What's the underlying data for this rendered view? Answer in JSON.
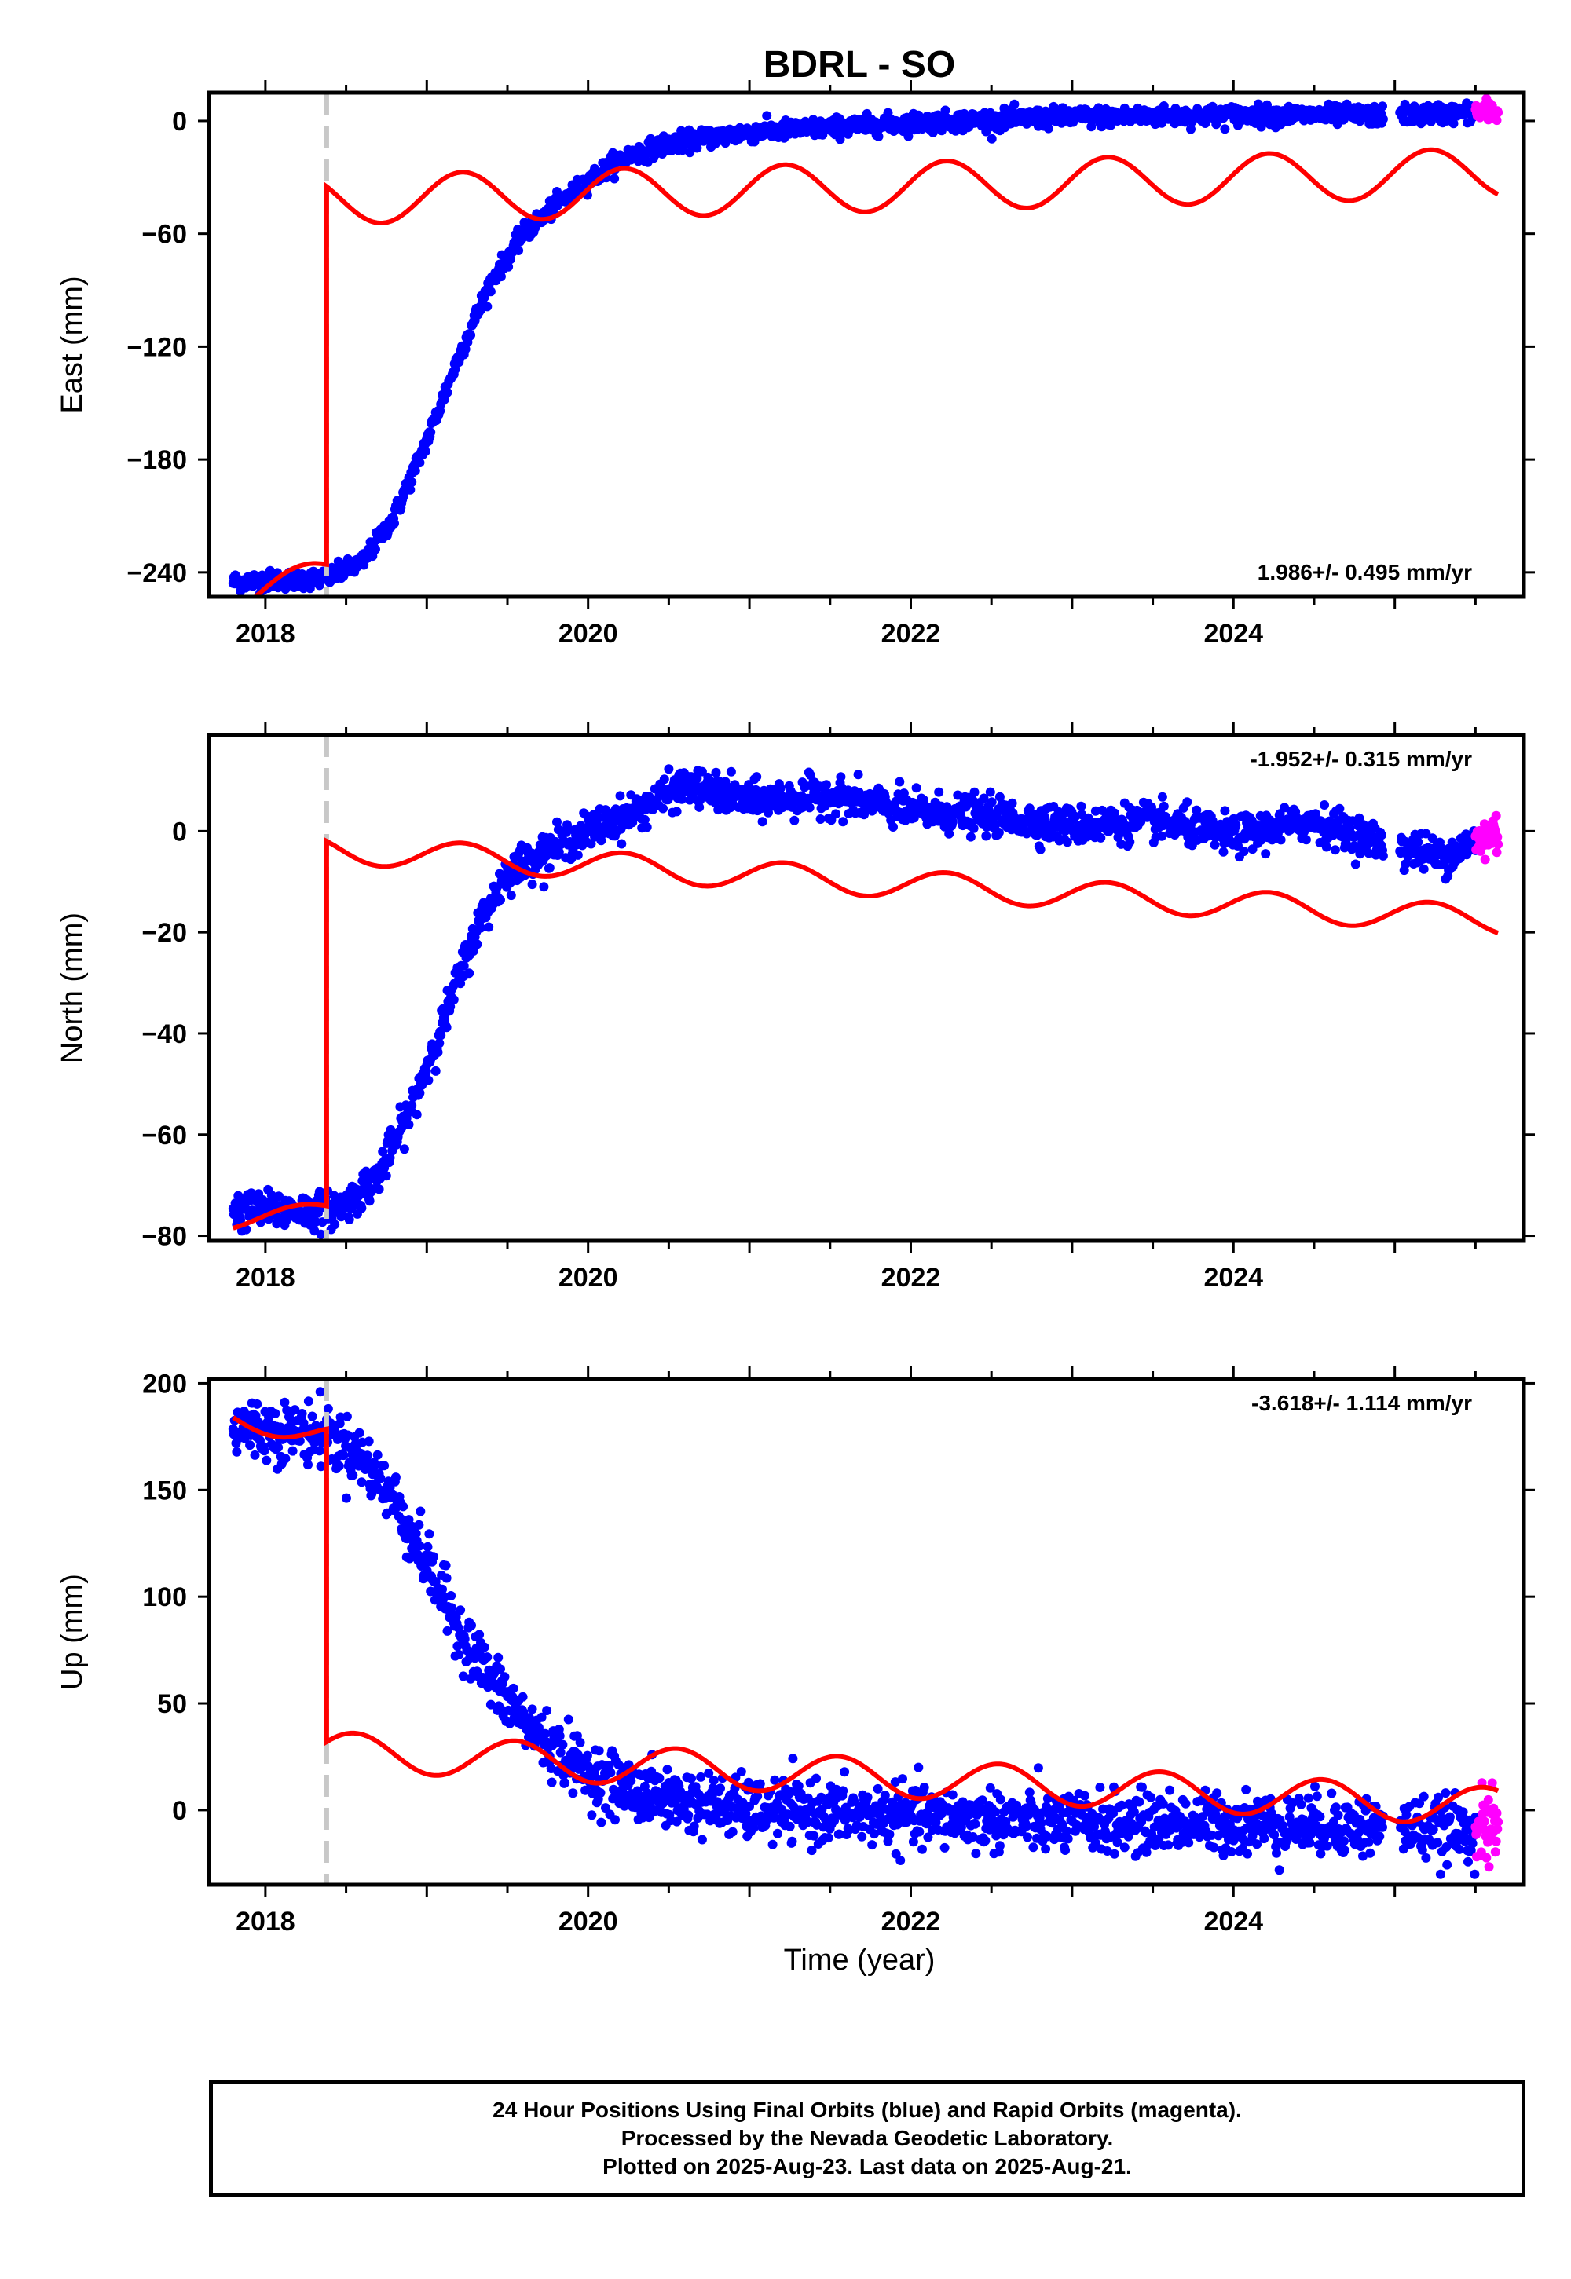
{
  "title": "BDRL - SO",
  "xlabel": "Time (year)",
  "footer": {
    "line1": "24 Hour Positions Using Final Orbits (blue) and Rapid Orbits (magenta).",
    "line2": "Processed by the Nevada Geodetic Laboratory.",
    "line3": "Plotted on 2025-Aug-23. Last data on 2025-Aug-21."
  },
  "colors": {
    "final_orbits": "#0000ff",
    "rapid_orbits": "#ff00ff",
    "model": "#ff0000",
    "antenna_change": "#c8c8c8"
  },
  "chart_data": [
    {
      "type": "scatter",
      "component": "east",
      "ylabel": "East (mm)",
      "rate": "1.986+/- 0.495 mm/yr",
      "rate_position": "bottom-right",
      "xlim": [
        2017.65,
        2025.8
      ],
      "ylim": [
        -253,
        15
      ],
      "yticks": [
        0,
        -60,
        -120,
        -180,
        -240
      ],
      "xticks": [
        2018,
        2020,
        2022,
        2024
      ],
      "step_epoch": 2018.38,
      "obs_start": 2017.8,
      "final_end": 2025.5,
      "gap": [
        2024.93,
        2025.03
      ],
      "rapid_range": [
        2025.5,
        2025.64
      ],
      "scatter_noise": 2.5,
      "blue_profile": [
        [
          2017.8,
          -245
        ],
        [
          2018.38,
          -243
        ],
        [
          2018.6,
          -235
        ],
        [
          2018.8,
          -210
        ],
        [
          2019.0,
          -170
        ],
        [
          2019.2,
          -125
        ],
        [
          2019.4,
          -85
        ],
        [
          2019.6,
          -60
        ],
        [
          2019.8,
          -45
        ],
        [
          2020.0,
          -32
        ],
        [
          2020.2,
          -20
        ],
        [
          2020.5,
          -12
        ],
        [
          2021.0,
          -6
        ],
        [
          2022.0,
          -1
        ],
        [
          2023.0,
          2
        ],
        [
          2024.0,
          3
        ],
        [
          2025.0,
          3
        ],
        [
          2025.64,
          5
        ]
      ],
      "red_model": {
        "pre": [
          -255,
          -240
        ],
        "post_start": -35,
        "post_rate": 1.986,
        "amplitude": 13,
        "period": 1.0,
        "peak_phase": 0.22
      }
    },
    {
      "type": "scatter",
      "component": "north",
      "ylabel": "North (mm)",
      "rate": "-1.952+/- 0.315 mm/yr",
      "rate_position": "top-right",
      "xlim": [
        2017.65,
        2025.8
      ],
      "ylim": [
        -81,
        19
      ],
      "yticks": [
        0,
        -20,
        -40,
        -60,
        -80
      ],
      "xticks": [
        2018,
        2020,
        2022,
        2024
      ],
      "step_epoch": 2018.38,
      "obs_start": 2017.8,
      "final_end": 2025.5,
      "gap": [
        2024.93,
        2025.03
      ],
      "rapid_range": [
        2025.5,
        2025.64
      ],
      "scatter_noise": 1.8,
      "blue_profile": [
        [
          2017.8,
          -75
        ],
        [
          2018.38,
          -75
        ],
        [
          2018.5,
          -74
        ],
        [
          2018.7,
          -68
        ],
        [
          2018.9,
          -55
        ],
        [
          2019.1,
          -38
        ],
        [
          2019.3,
          -20
        ],
        [
          2019.5,
          -8
        ],
        [
          2019.8,
          -3
        ],
        [
          2020.0,
          0
        ],
        [
          2020.3,
          4
        ],
        [
          2020.6,
          9
        ],
        [
          2021.0,
          6
        ],
        [
          2021.5,
          7
        ],
        [
          2022.0,
          4
        ],
        [
          2022.5,
          3
        ],
        [
          2023.0,
          1
        ],
        [
          2023.5,
          2
        ],
        [
          2024.0,
          -1
        ],
        [
          2024.5,
          2
        ],
        [
          2025.0,
          -3
        ],
        [
          2025.3,
          -5
        ],
        [
          2025.64,
          0
        ]
      ],
      "red_model": {
        "pre": [
          -77,
          -75
        ],
        "post_start": -2,
        "post_rate": -1.952,
        "amplitude": 2.8,
        "period": 1.0,
        "peak_phase": 0.22
      }
    },
    {
      "type": "scatter",
      "component": "up",
      "ylabel": "Up (mm)",
      "rate": "-3.618+/- 1.114 mm/yr",
      "rate_position": "top-right",
      "xlim": [
        2017.65,
        2025.8
      ],
      "ylim": [
        -35,
        202
      ],
      "yticks": [
        200,
        150,
        100,
        50,
        0
      ],
      "xticks": [
        2018,
        2020,
        2022,
        2024
      ],
      "step_epoch": 2018.38,
      "obs_start": 2017.8,
      "final_end": 2025.5,
      "gap": [
        2024.93,
        2025.03
      ],
      "rapid_range": [
        2025.5,
        2025.64
      ],
      "scatter_noise": 7,
      "blue_profile": [
        [
          2017.8,
          180
        ],
        [
          2018.0,
          178
        ],
        [
          2018.38,
          176
        ],
        [
          2018.6,
          165
        ],
        [
          2018.8,
          145
        ],
        [
          2019.0,
          115
        ],
        [
          2019.2,
          85
        ],
        [
          2019.4,
          60
        ],
        [
          2019.6,
          42
        ],
        [
          2019.8,
          28
        ],
        [
          2020.0,
          18
        ],
        [
          2020.3,
          8
        ],
        [
          2021.0,
          0
        ],
        [
          2022.0,
          -3
        ],
        [
          2023.0,
          -6
        ],
        [
          2024.0,
          -6
        ],
        [
          2025.0,
          -8
        ],
        [
          2025.64,
          -10
        ]
      ],
      "red_model": {
        "pre": [
          184,
          176
        ],
        "post_start": 32,
        "post_rate": -3.618,
        "amplitude": 9,
        "period": 1.0,
        "peak_phase": 0.55
      }
    }
  ]
}
